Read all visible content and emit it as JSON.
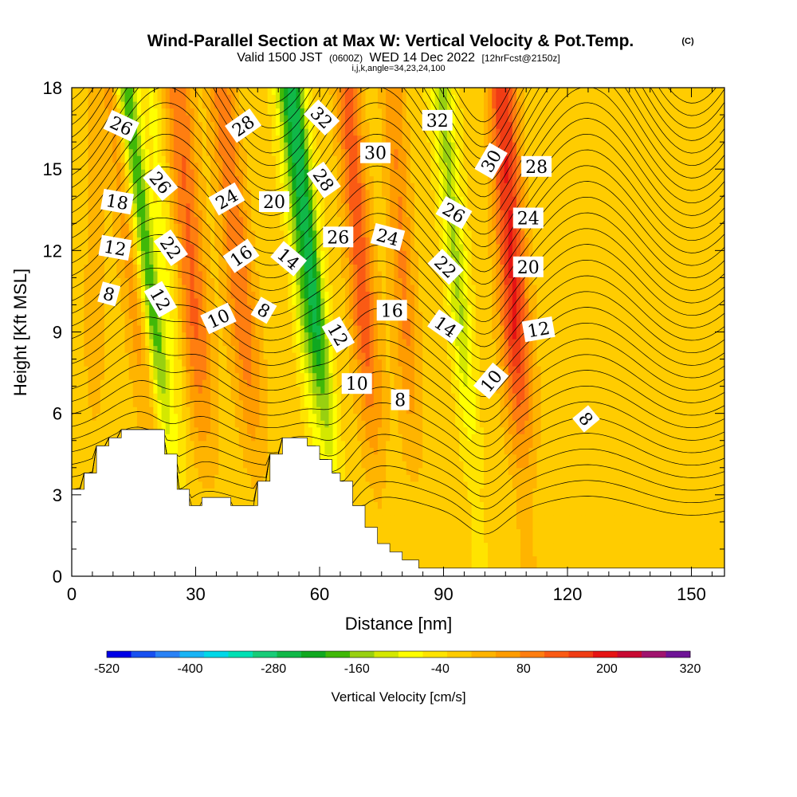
{
  "title": {
    "main": "Wind-Parallel Section at Max W: Vertical Velocity & Pot.Temp.",
    "copyright": "(C)",
    "valid_prefix": "Valid 1500 JST",
    "utc": "(0600Z)",
    "valid_date": "WED 14 Dec 2022",
    "forecast": "[12hrFcst@2150z]",
    "indices": "i,j,k,angle=34,23,24,100"
  },
  "chart_data": {
    "type": "heatmap",
    "xlabel": "Distance [nm]",
    "ylabel": "Height [Kft MSL]",
    "xlim": [
      0,
      158
    ],
    "ylim": [
      0,
      18
    ],
    "x_ticks": [
      0,
      30,
      60,
      90,
      120,
      150
    ],
    "y_ticks": [
      0,
      3,
      6,
      9,
      12,
      15,
      18
    ],
    "x_tick_labels": [
      "0",
      "30",
      "60",
      "90",
      "120",
      "150"
    ],
    "y_tick_labels": [
      "0",
      "3",
      "6",
      "9",
      "12",
      "15",
      "18"
    ],
    "colorbar": {
      "title": "Vertical Velocity [cm/s]",
      "labels": [
        "-520",
        "-400",
        "-280",
        "-160",
        "-40",
        "80",
        "200",
        "320"
      ],
      "label_values": [
        -520,
        -400,
        -280,
        -160,
        -40,
        80,
        200,
        320
      ],
      "min": -520,
      "max": 320,
      "step": 40,
      "colors": [
        "#0000e6",
        "#1850f0",
        "#2a82f5",
        "#18b4f5",
        "#00d8e8",
        "#00e0b4",
        "#18cc78",
        "#10b848",
        "#10a820",
        "#40b808",
        "#98d010",
        "#d4e800",
        "#ffff00",
        "#ffe400",
        "#ffcc00",
        "#ffb400",
        "#ff9c00",
        "#ff7e10",
        "#fa5a14",
        "#f03c14",
        "#e61414",
        "#c80a32",
        "#a0146e",
        "#6e1496"
      ]
    },
    "terrain": [
      {
        "x": 0,
        "h": 3.2
      },
      {
        "x": 3,
        "h": 3.2
      },
      {
        "x": 3,
        "h": 3.8
      },
      {
        "x": 6,
        "h": 3.8
      },
      {
        "x": 6,
        "h": 4.8
      },
      {
        "x": 9,
        "h": 4.8
      },
      {
        "x": 9,
        "h": 5.1
      },
      {
        "x": 12,
        "h": 5.1
      },
      {
        "x": 12,
        "h": 5.4
      },
      {
        "x": 15,
        "h": 5.4
      },
      {
        "x": 22.5,
        "h": 5.4
      },
      {
        "x": 22.5,
        "h": 4.5
      },
      {
        "x": 25.5,
        "h": 4.5
      },
      {
        "x": 25.5,
        "h": 3.2
      },
      {
        "x": 28.5,
        "h": 3.2
      },
      {
        "x": 28.5,
        "h": 2.6
      },
      {
        "x": 31.5,
        "h": 2.6
      },
      {
        "x": 31.5,
        "h": 2.9
      },
      {
        "x": 38.5,
        "h": 2.9
      },
      {
        "x": 38.5,
        "h": 2.6
      },
      {
        "x": 45,
        "h": 2.6
      },
      {
        "x": 45,
        "h": 3.5
      },
      {
        "x": 48,
        "h": 3.5
      },
      {
        "x": 48,
        "h": 4.5
      },
      {
        "x": 51,
        "h": 4.5
      },
      {
        "x": 51,
        "h": 5.1
      },
      {
        "x": 57,
        "h": 5.1
      },
      {
        "x": 57,
        "h": 4.8
      },
      {
        "x": 60,
        "h": 4.8
      },
      {
        "x": 60,
        "h": 4.3
      },
      {
        "x": 63,
        "h": 4.3
      },
      {
        "x": 63,
        "h": 3.8
      },
      {
        "x": 65,
        "h": 3.8
      },
      {
        "x": 65,
        "h": 3.5
      },
      {
        "x": 68,
        "h": 3.5
      },
      {
        "x": 68,
        "h": 2.6
      },
      {
        "x": 71,
        "h": 2.6
      },
      {
        "x": 71,
        "h": 1.8
      },
      {
        "x": 74,
        "h": 1.8
      },
      {
        "x": 74,
        "h": 1.2
      },
      {
        "x": 77,
        "h": 1.2
      },
      {
        "x": 77,
        "h": 0.9
      },
      {
        "x": 80,
        "h": 0.9
      },
      {
        "x": 80,
        "h": 0.6
      },
      {
        "x": 84,
        "h": 0.6
      },
      {
        "x": 84,
        "h": 0.3
      },
      {
        "x": 158,
        "h": 0.3
      }
    ],
    "updrafts": [
      {
        "x": 18.5,
        "tilt": 0.12,
        "amp": 90,
        "w": 3.0
      },
      {
        "x": 31.5,
        "tilt": 0.08,
        "amp": 150,
        "w": 3.5
      },
      {
        "x": 43.5,
        "tilt": 0.1,
        "amp": 140,
        "w": 3.5
      },
      {
        "x": 72.5,
        "tilt": 0.08,
        "amp": 170,
        "w": 3.2
      },
      {
        "x": 82,
        "tilt": 0.06,
        "amp": 110,
        "w": 3.0
      },
      {
        "x": 108.5,
        "tilt": 0.06,
        "amp": 230,
        "w": 3.5
      },
      {
        "x": 5.5,
        "tilt": 0,
        "amp": 40,
        "w": 3.0
      }
    ],
    "downdrafts": [
      {
        "x": 22.5,
        "tilt": 0.13,
        "amp": -220,
        "w": 2.5
      },
      {
        "x": 61.5,
        "tilt": 0.11,
        "amp": -260,
        "w": 2.6
      },
      {
        "x": 96,
        "tilt": 0.09,
        "amp": -140,
        "w": 2.6
      },
      {
        "x": 58,
        "tilt": 0.1,
        "amp": -100,
        "w": 2.2
      },
      {
        "x": 26.5,
        "tilt": 0.1,
        "amp": -60,
        "w": 2.0
      }
    ],
    "theta_contour_labels": [
      {
        "text": "26",
        "x": 12,
        "y": 16.6,
        "rot": 25
      },
      {
        "text": "28",
        "x": 41.5,
        "y": 16.6,
        "rot": -35
      },
      {
        "text": "32",
        "x": 60.5,
        "y": 16.9,
        "rot": 45
      },
      {
        "text": "32",
        "x": 88.5,
        "y": 16.8,
        "rot": 0
      },
      {
        "text": "30",
        "x": 73.5,
        "y": 15.6,
        "rot": 0
      },
      {
        "text": "30",
        "x": 101.5,
        "y": 15.3,
        "rot": -60
      },
      {
        "text": "28",
        "x": 112.5,
        "y": 15.1,
        "rot": 0
      },
      {
        "text": "26",
        "x": 21.5,
        "y": 14.5,
        "rot": 50
      },
      {
        "text": "28",
        "x": 61,
        "y": 14.6,
        "rot": 55
      },
      {
        "text": "18",
        "x": 11,
        "y": 13.8,
        "rot": 10
      },
      {
        "text": "24",
        "x": 37.5,
        "y": 13.9,
        "rot": -30
      },
      {
        "text": "20",
        "x": 49,
        "y": 13.8,
        "rot": 0
      },
      {
        "text": "26",
        "x": 92.5,
        "y": 13.4,
        "rot": 30
      },
      {
        "text": "24",
        "x": 110.5,
        "y": 13.2,
        "rot": 0
      },
      {
        "text": "12",
        "x": 10.5,
        "y": 12.1,
        "rot": 10
      },
      {
        "text": "22",
        "x": 24,
        "y": 12.1,
        "rot": 55
      },
      {
        "text": "26",
        "x": 64.5,
        "y": 12.5,
        "rot": 0
      },
      {
        "text": "24",
        "x": 76.5,
        "y": 12.5,
        "rot": 15
      },
      {
        "text": "16",
        "x": 41,
        "y": 11.8,
        "rot": -35
      },
      {
        "text": "14",
        "x": 52.5,
        "y": 11.7,
        "rot": 40
      },
      {
        "text": "22",
        "x": 90.5,
        "y": 11.4,
        "rot": 45
      },
      {
        "text": "20",
        "x": 110.5,
        "y": 11.4,
        "rot": 0
      },
      {
        "text": "8",
        "x": 9,
        "y": 10.4,
        "rot": 15
      },
      {
        "text": "12",
        "x": 21.5,
        "y": 10.2,
        "rot": 60
      },
      {
        "text": "10",
        "x": 35.5,
        "y": 9.5,
        "rot": -25
      },
      {
        "text": "8",
        "x": 46.5,
        "y": 9.8,
        "rot": 30
      },
      {
        "text": "16",
        "x": 77.5,
        "y": 9.8,
        "rot": 0
      },
      {
        "text": "14",
        "x": 90.5,
        "y": 9.2,
        "rot": 35
      },
      {
        "text": "12",
        "x": 113,
        "y": 9.1,
        "rot": -10
      },
      {
        "text": "12",
        "x": 64.5,
        "y": 8.9,
        "rot": 60
      },
      {
        "text": "10",
        "x": 69,
        "y": 7.1,
        "rot": 0
      },
      {
        "text": "8",
        "x": 79.5,
        "y": 6.5,
        "rot": 0
      },
      {
        "text": "10",
        "x": 101.5,
        "y": 7.2,
        "rot": -50
      },
      {
        "text": "8",
        "x": 124.5,
        "y": 5.8,
        "rot": 50
      }
    ]
  }
}
